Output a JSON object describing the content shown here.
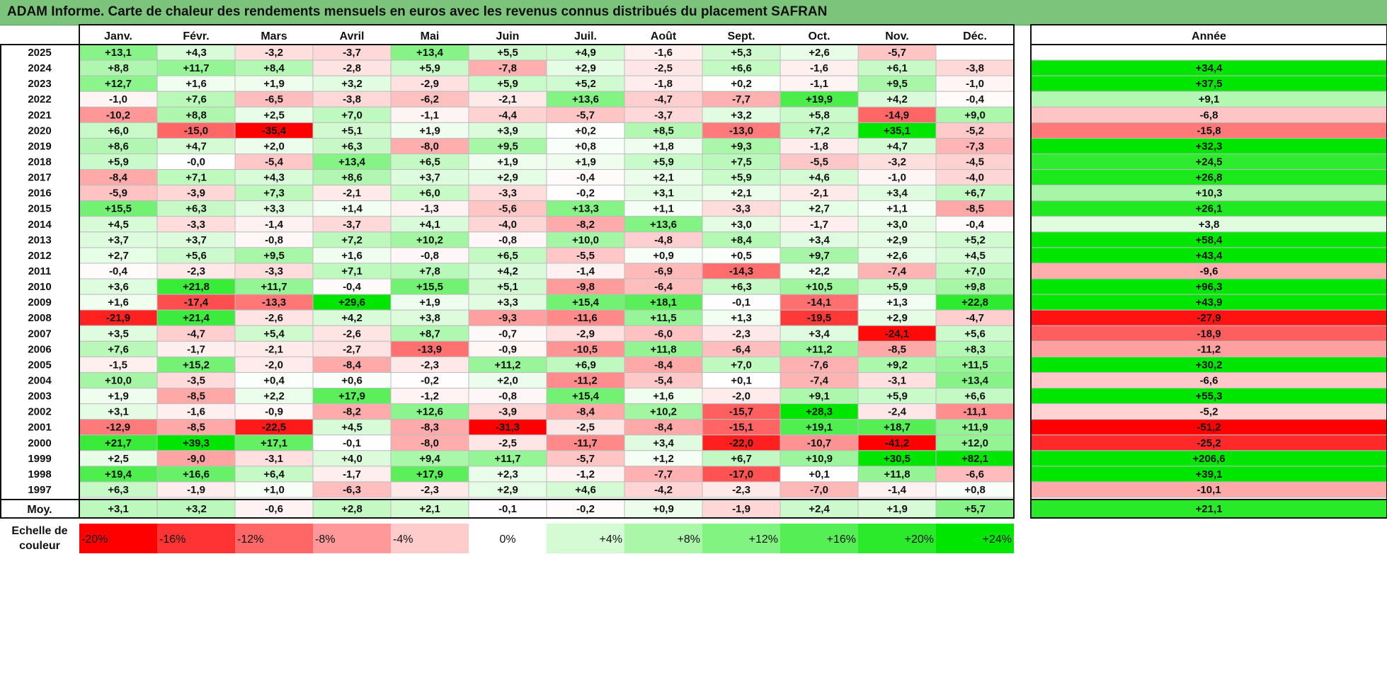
{
  "title": "ADAM Informe. Carte de chaleur des rendements mensuels en euros avec les revenus connus distribués du placement SAFRAN",
  "chart_data": {
    "type": "heatmap",
    "months": [
      "Janv.",
      "Févr.",
      "Mars",
      "Avril",
      "Mai",
      "Juin",
      "Juil.",
      "Août",
      "Sept.",
      "Oct.",
      "Nov.",
      "Déc."
    ],
    "year_header": "Année",
    "avg_label": "Moy.",
    "rows": [
      {
        "year": "2025",
        "values": [
          "+13,1",
          "+4,3",
          "-3,2",
          "-3,7",
          "+13,4",
          "+5,5",
          "+4,9",
          "-1,6",
          "+5,3",
          "+2,6",
          "-5,7",
          ""
        ],
        "annual": ""
      },
      {
        "year": "2024",
        "values": [
          "+8,8",
          "+11,7",
          "+8,4",
          "-2,8",
          "+5,9",
          "-7,8",
          "+2,9",
          "-2,5",
          "+6,6",
          "-1,6",
          "+6,1",
          "-3,8"
        ],
        "annual": "+34,4"
      },
      {
        "year": "2023",
        "values": [
          "+12,7",
          "+1,6",
          "+1,9",
          "+3,2",
          "-2,9",
          "+5,9",
          "+5,2",
          "-1,8",
          "+0,2",
          "-1,1",
          "+9,5",
          "-1,0"
        ],
        "annual": "+37,5"
      },
      {
        "year": "2022",
        "values": [
          "-1,0",
          "+7,6",
          "-6,5",
          "-3,8",
          "-6,2",
          "-2,1",
          "+13,6",
          "-4,7",
          "-7,7",
          "+19,9",
          "+4,2",
          "-0,4"
        ],
        "annual": "+9,1"
      },
      {
        "year": "2021",
        "values": [
          "-10,2",
          "+8,8",
          "+2,5",
          "+7,0",
          "-1,1",
          "-4,4",
          "-5,7",
          "-3,7",
          "+3,2",
          "+5,8",
          "-14,9",
          "+9,0"
        ],
        "annual": "-6,8"
      },
      {
        "year": "2020",
        "values": [
          "+6,0",
          "-15,0",
          "-35,4",
          "+5,1",
          "+1,9",
          "+3,9",
          "+0,2",
          "+8,5",
          "-13,0",
          "+7,2",
          "+35,1",
          "-5,2"
        ],
        "annual": "-15,8"
      },
      {
        "year": "2019",
        "values": [
          "+8,6",
          "+4,7",
          "+2,0",
          "+6,3",
          "-8,0",
          "+9,5",
          "+0,8",
          "+1,8",
          "+9,3",
          "-1,8",
          "+4,7",
          "-7,3"
        ],
        "annual": "+32,3"
      },
      {
        "year": "2018",
        "values": [
          "+5,9",
          "-0,0",
          "-5,4",
          "+13,4",
          "+6,5",
          "+1,9",
          "+1,9",
          "+5,9",
          "+7,5",
          "-5,5",
          "-3,2",
          "-4,5"
        ],
        "annual": "+24,5"
      },
      {
        "year": "2017",
        "values": [
          "-8,4",
          "+7,1",
          "+4,3",
          "+8,6",
          "+3,7",
          "+2,9",
          "-0,4",
          "+2,1",
          "+5,9",
          "+4,6",
          "-1,0",
          "-4,0"
        ],
        "annual": "+26,8"
      },
      {
        "year": "2016",
        "values": [
          "-5,9",
          "-3,9",
          "+7,3",
          "-2,1",
          "+6,0",
          "-3,3",
          "-0,2",
          "+3,1",
          "+2,1",
          "-2,1",
          "+3,4",
          "+6,7"
        ],
        "annual": "+10,3"
      },
      {
        "year": "2015",
        "values": [
          "+15,5",
          "+6,3",
          "+3,3",
          "+1,4",
          "-1,3",
          "-5,6",
          "+13,3",
          "+1,1",
          "-3,3",
          "+2,7",
          "+1,1",
          "-8,5"
        ],
        "annual": "+26,1"
      },
      {
        "year": "2014",
        "values": [
          "+4,5",
          "-3,3",
          "-1,4",
          "-3,7",
          "+4,1",
          "-4,0",
          "-8,2",
          "+13,6",
          "+3,0",
          "-1,7",
          "+3,0",
          "-0,4"
        ],
        "annual": "+3,8"
      },
      {
        "year": "2013",
        "values": [
          "+3,7",
          "+3,7",
          "-0,8",
          "+7,2",
          "+10,2",
          "-0,8",
          "+10,0",
          "-4,8",
          "+8,4",
          "+3,4",
          "+2,9",
          "+5,2"
        ],
        "annual": "+58,4"
      },
      {
        "year": "2012",
        "values": [
          "+2,7",
          "+5,6",
          "+9,5",
          "+1,6",
          "-0,8",
          "+6,5",
          "-5,5",
          "+0,9",
          "+0,5",
          "+9,7",
          "+2,6",
          "+4,5"
        ],
        "annual": "+43,4"
      },
      {
        "year": "2011",
        "values": [
          "-0,4",
          "-2,3",
          "-3,3",
          "+7,1",
          "+7,8",
          "+4,2",
          "-1,4",
          "-6,9",
          "-14,3",
          "+2,2",
          "-7,4",
          "+7,0"
        ],
        "annual": "-9,6"
      },
      {
        "year": "2010",
        "values": [
          "+3,6",
          "+21,8",
          "+11,7",
          "-0,4",
          "+15,5",
          "+5,1",
          "-9,8",
          "-6,4",
          "+6,3",
          "+10,5",
          "+5,9",
          "+9,8"
        ],
        "annual": "+96,3"
      },
      {
        "year": "2009",
        "values": [
          "+1,6",
          "-17,4",
          "-13,3",
          "+29,6",
          "+1,9",
          "+3,3",
          "+15,4",
          "+18,1",
          "-0,1",
          "-14,1",
          "+1,3",
          "+22,8"
        ],
        "annual": "+43,9"
      },
      {
        "year": "2008",
        "values": [
          "-21,9",
          "+21,4",
          "-2,6",
          "+4,2",
          "+3,8",
          "-9,3",
          "-11,6",
          "+11,5",
          "+1,3",
          "-19,5",
          "+2,9",
          "-4,7"
        ],
        "annual": "-27,9"
      },
      {
        "year": "2007",
        "values": [
          "+3,5",
          "-4,7",
          "+5,4",
          "-2,6",
          "+8,7",
          "-0,7",
          "-2,9",
          "-6,0",
          "-2,3",
          "+3,4",
          "-24,1",
          "+5,6"
        ],
        "annual": "-18,9"
      },
      {
        "year": "2006",
        "values": [
          "+7,6",
          "-1,7",
          "-2,1",
          "-2,7",
          "-13,9",
          "-0,9",
          "-10,5",
          "+11,8",
          "-6,4",
          "+11,2",
          "-8,5",
          "+8,3"
        ],
        "annual": "-11,2"
      },
      {
        "year": "2005",
        "values": [
          "-1,5",
          "+15,2",
          "-2,0",
          "-8,4",
          "-2,3",
          "+11,2",
          "+6,9",
          "-8,4",
          "+7,0",
          "-7,6",
          "+9,2",
          "+11,5"
        ],
        "annual": "+30,2"
      },
      {
        "year": "2004",
        "values": [
          "+10,0",
          "-3,5",
          "+0,4",
          "+0,6",
          "-0,2",
          "+2,0",
          "-11,2",
          "-5,4",
          "+0,1",
          "-7,4",
          "-3,1",
          "+13,4"
        ],
        "annual": "-6,6"
      },
      {
        "year": "2003",
        "values": [
          "+1,9",
          "-8,5",
          "+2,2",
          "+17,9",
          "-1,2",
          "-0,8",
          "+15,4",
          "+1,6",
          "-2,0",
          "+9,1",
          "+5,9",
          "+6,6"
        ],
        "annual": "+55,3"
      },
      {
        "year": "2002",
        "values": [
          "+3,1",
          "-1,6",
          "-0,9",
          "-8,2",
          "+12,6",
          "-3,9",
          "-8,4",
          "+10,2",
          "-15,7",
          "+28,3",
          "-2,4",
          "-11,1"
        ],
        "annual": "-5,2"
      },
      {
        "year": "2001",
        "values": [
          "-12,9",
          "-8,5",
          "-22,5",
          "+4,5",
          "-8,3",
          "-31,3",
          "-2,5",
          "-8,4",
          "-15,1",
          "+19,1",
          "+18,7",
          "+11,9"
        ],
        "annual": "-51,2"
      },
      {
        "year": "2000",
        "values": [
          "+21,7",
          "+39,3",
          "+17,1",
          "-0,1",
          "-8,0",
          "-2,5",
          "-11,7",
          "+3,4",
          "-22,0",
          "-10,7",
          "-41,2",
          "+12,0"
        ],
        "annual": "-25,2"
      },
      {
        "year": "1999",
        "values": [
          "+2,5",
          "-9,0",
          "-3,1",
          "+4,0",
          "+9,4",
          "+11,7",
          "-5,7",
          "+1,2",
          "+6,7",
          "+10,9",
          "+30,5",
          "+82,1"
        ],
        "annual": "+206,6"
      },
      {
        "year": "1998",
        "values": [
          "+19,4",
          "+16,6",
          "+6,4",
          "-1,7",
          "+17,9",
          "+2,3",
          "-1,2",
          "-7,7",
          "-17,0",
          "+0,1",
          "+11,8",
          "-6,6"
        ],
        "annual": "+39,1"
      },
      {
        "year": "1997",
        "values": [
          "+6,3",
          "-1,9",
          "+1,0",
          "-6,3",
          "-2,3",
          "+2,9",
          "+4,6",
          "-4,2",
          "-2,3",
          "-7,0",
          "-1,4",
          "+0,8"
        ],
        "annual": "-10,1"
      }
    ],
    "average": {
      "label": "Moy.",
      "values": [
        "+3,1",
        "+3,2",
        "-0,6",
        "+2,8",
        "+2,1",
        "-0,1",
        "-0,2",
        "+0,9",
        "-1,9",
        "+2,4",
        "+1,9",
        "+5,7"
      ],
      "annual": "+21,1"
    },
    "scale": {
      "label_lines": [
        "Echelle de",
        "couleur"
      ],
      "stops": [
        {
          "label": "-20%",
          "value": -20
        },
        {
          "label": "-16%",
          "value": -16
        },
        {
          "label": "-12%",
          "value": -12
        },
        {
          "label": "-8%",
          "value": -8
        },
        {
          "label": "-4%",
          "value": -4
        },
        {
          "label": "0%",
          "value": 0
        },
        {
          "label": "+4%",
          "value": 4
        },
        {
          "label": "+8%",
          "value": 8
        },
        {
          "label": "+12%",
          "value": 12
        },
        {
          "label": "+16%",
          "value": 16
        },
        {
          "label": "+20%",
          "value": 20
        },
        {
          "label": "+24%",
          "value": 24
        }
      ]
    },
    "colors": {
      "negative": "#ff0000",
      "positive": "#00e600",
      "neutral": "#ffffff",
      "title_bar": "#7cc47c"
    }
  }
}
